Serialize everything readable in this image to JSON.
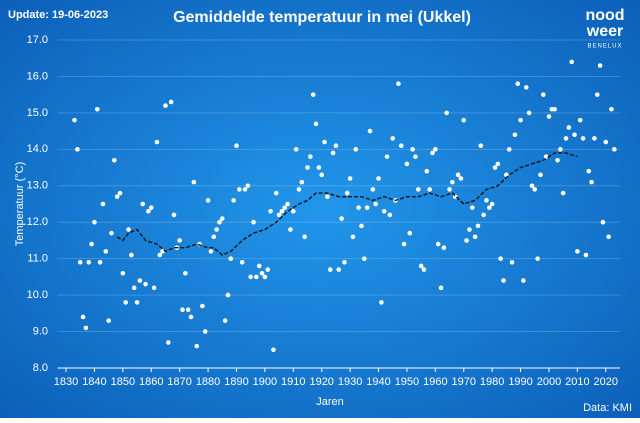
{
  "header": {
    "update": "Update: 19-06-2023",
    "source": "Data: KMI"
  },
  "logo": {
    "top": "nood",
    "bottom": "weer",
    "region": "BENELUX"
  },
  "chart_data": {
    "type": "scatter",
    "title": "Gemiddelde temperatuur in mei (Ukkel)",
    "x_label": "Jaren",
    "y_label": "Temperatuur (°C)",
    "xlim": [
      1827,
      2025
    ],
    "ylim": [
      8,
      17
    ],
    "xticks": [
      1830,
      1840,
      1850,
      1860,
      1870,
      1880,
      1890,
      1900,
      1910,
      1920,
      1930,
      1940,
      1950,
      1960,
      1970,
      1980,
      1990,
      2000,
      2010,
      2020
    ],
    "yticks": [
      {
        "value": 8,
        "label": "8.0"
      },
      {
        "value": 9,
        "label": "9.0"
      },
      {
        "value": 10,
        "label": "10.0"
      },
      {
        "value": 11,
        "label": "11.0"
      },
      {
        "value": 12,
        "label": "12.0"
      },
      {
        "value": 13,
        "label": "13.0"
      },
      {
        "value": 14,
        "label": "14.0"
      },
      {
        "value": 15,
        "label": "15.0"
      },
      {
        "value": 16,
        "label": "16.0"
      },
      {
        "value": 17,
        "label": "17.0"
      }
    ],
    "grid": true,
    "series": [
      {
        "type": "scatter",
        "color": "#ffffff",
        "x": [
          1833,
          1834,
          1835,
          1836,
          1837,
          1838,
          1839,
          1840,
          1841,
          1842,
          1843,
          1844,
          1845,
          1846,
          1847,
          1848,
          1849,
          1850,
          1851,
          1852,
          1853,
          1854,
          1855,
          1856,
          1857,
          1858,
          1859,
          1860,
          1861,
          1862,
          1863,
          1864,
          1865,
          1866,
          1867,
          1868,
          1869,
          1870,
          1871,
          1872,
          1873,
          1874,
          1875,
          1876,
          1877,
          1878,
          1879,
          1880,
          1881,
          1882,
          1883,
          1884,
          1885,
          1886,
          1887,
          1888,
          1889,
          1890,
          1891,
          1892,
          1893,
          1894,
          1895,
          1896,
          1897,
          1898,
          1899,
          1900,
          1901,
          1902,
          1903,
          1904,
          1905,
          1906,
          1907,
          1908,
          1909,
          1910,
          1911,
          1912,
          1913,
          1914,
          1915,
          1916,
          1917,
          1918,
          1919,
          1920,
          1921,
          1922,
          1923,
          1924,
          1925,
          1926,
          1927,
          1928,
          1929,
          1930,
          1931,
          1932,
          1933,
          1934,
          1935,
          1936,
          1937,
          1938,
          1939,
          1940,
          1941,
          1942,
          1943,
          1944,
          1945,
          1946,
          1947,
          1948,
          1949,
          1950,
          1951,
          1952,
          1953,
          1954,
          1955,
          1956,
          1957,
          1958,
          1959,
          1960,
          1961,
          1962,
          1963,
          1964,
          1965,
          1966,
          1967,
          1968,
          1969,
          1970,
          1971,
          1972,
          1973,
          1974,
          1975,
          1976,
          1977,
          1978,
          1979,
          1980,
          1981,
          1982,
          1983,
          1984,
          1985,
          1986,
          1987,
          1988,
          1989,
          1990,
          1991,
          1992,
          1993,
          1994,
          1995,
          1996,
          1997,
          1998,
          1999,
          2000,
          2001,
          2002,
          2003,
          2004,
          2005,
          2006,
          2007,
          2008,
          2009,
          2010,
          2011,
          2012,
          2013,
          2014,
          2015,
          2016,
          2017,
          2018,
          2019,
          2020,
          2021,
          2022,
          2023
        ],
        "values": [
          14.8,
          14.0,
          10.9,
          9.4,
          9.1,
          10.9,
          11.4,
          12.0,
          15.1,
          10.9,
          12.5,
          11.2,
          9.3,
          11.7,
          13.7,
          12.7,
          12.8,
          10.6,
          9.8,
          11.8,
          11.1,
          10.2,
          9.8,
          10.4,
          12.5,
          10.3,
          12.3,
          12.4,
          10.2,
          14.2,
          11.1,
          11.2,
          15.2,
          8.7,
          15.3,
          12.2,
          11.3,
          11.5,
          9.6,
          10.6,
          9.6,
          9.4,
          13.1,
          8.6,
          11.4,
          9.7,
          9.0,
          12.6,
          11.2,
          11.6,
          11.8,
          12.0,
          12.1,
          9.3,
          10.0,
          11.0,
          12.6,
          14.1,
          12.9,
          10.9,
          12.9,
          13.0,
          10.5,
          12.0,
          10.5,
          10.8,
          10.6,
          10.5,
          10.7,
          12.3,
          8.5,
          12.8,
          12.2,
          12.3,
          12.4,
          12.5,
          11.8,
          12.3,
          14.0,
          12.9,
          13.1,
          11.6,
          13.5,
          13.8,
          15.5,
          14.7,
          13.5,
          13.3,
          14.2,
          12.7,
          10.7,
          13.9,
          14.1,
          10.7,
          12.1,
          10.9,
          12.8,
          13.2,
          11.6,
          14.0,
          12.4,
          11.9,
          11.0,
          12.4,
          14.5,
          12.9,
          12.5,
          13.2,
          9.8,
          12.3,
          13.8,
          12.2,
          14.3,
          12.6,
          15.8,
          14.1,
          11.4,
          13.6,
          11.7,
          14.0,
          13.8,
          12.9,
          10.8,
          10.7,
          13.4,
          12.9,
          13.9,
          14.0,
          11.4,
          10.2,
          11.3,
          15.0,
          12.9,
          13.1,
          12.7,
          13.3,
          13.2,
          14.8,
          11.5,
          11.8,
          12.4,
          11.6,
          11.9,
          14.1,
          12.2,
          12.6,
          12.4,
          12.5,
          13.5,
          13.6,
          11.0,
          10.4,
          13.3,
          14.0,
          10.9,
          14.4,
          15.8,
          14.8,
          10.4,
          15.7,
          15.0,
          13.0,
          12.9,
          11.0,
          13.3,
          15.5,
          13.8,
          14.9,
          15.1,
          15.1,
          13.7,
          14.0,
          12.8,
          14.3,
          14.6,
          16.4,
          14.4,
          11.2,
          14.8,
          14.3,
          11.1,
          13.4,
          13.1,
          14.3,
          15.5,
          16.3,
          12.0,
          14.2,
          11.6,
          15.1,
          14.0
        ]
      },
      {
        "type": "line",
        "color": "#111111",
        "dashed": true,
        "x": [
          1848,
          1850,
          1852,
          1855,
          1858,
          1862,
          1865,
          1868,
          1872,
          1876,
          1880,
          1882,
          1885,
          1888,
          1892,
          1896,
          1900,
          1904,
          1908,
          1912,
          1915,
          1918,
          1922,
          1926,
          1930,
          1934,
          1938,
          1942,
          1946,
          1950,
          1954,
          1958,
          1962,
          1966,
          1970,
          1974,
          1978,
          1982,
          1986,
          1990,
          1994,
          1998,
          2002,
          2006,
          2010
        ],
        "values": [
          11.6,
          11.5,
          11.7,
          11.8,
          11.5,
          11.4,
          11.2,
          11.3,
          11.3,
          11.4,
          11.3,
          11.3,
          11.1,
          11.2,
          11.5,
          11.7,
          11.8,
          12.0,
          12.3,
          12.5,
          12.6,
          12.8,
          12.8,
          12.7,
          12.7,
          12.7,
          12.6,
          12.7,
          12.6,
          12.7,
          12.7,
          12.8,
          12.7,
          12.8,
          12.5,
          12.6,
          12.9,
          13.0,
          13.3,
          13.5,
          13.6,
          13.7,
          13.9,
          13.9,
          13.8
        ]
      }
    ]
  }
}
